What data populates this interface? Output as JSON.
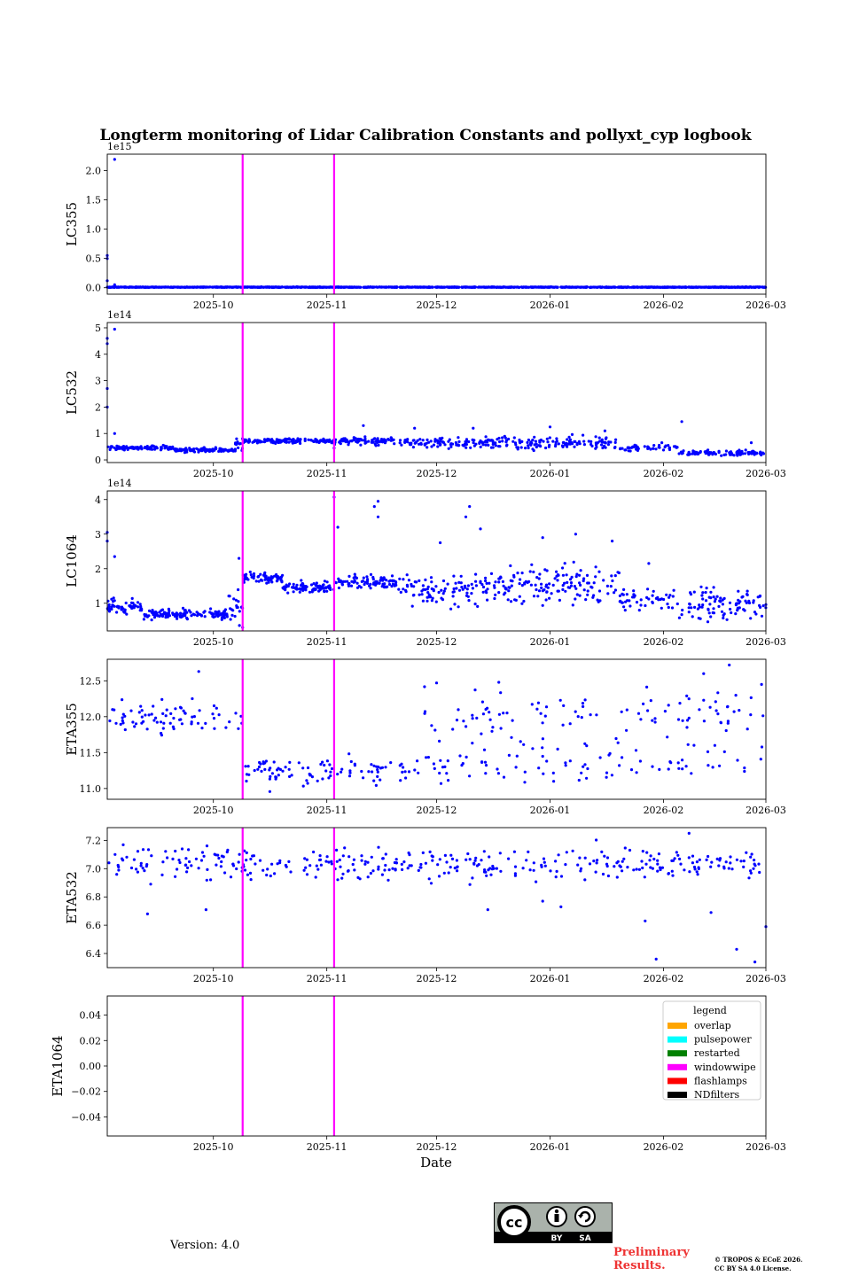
{
  "title": "Longterm monitoring of Lidar Calibration Constants and pollyxt_cyp logbook",
  "xlabel": "Date",
  "version_text": "Version: 4.0",
  "preliminary_line1": "Preliminary",
  "preliminary_line2": "Results.",
  "copyright_line1": "© TROPOS & ECoE 2026.",
  "copyright_line2": "CC BY SA 4.0 License.",
  "cc_badge": {
    "icon": "creative-commons-icon",
    "by_label": "BY",
    "sa_label": "SA"
  },
  "colors": {
    "data": "#0000ff",
    "windowwipe": "#ff00ff"
  },
  "chart_data": [
    {
      "type": "scatter",
      "ylabel": "LC355",
      "multiplier": "1e15",
      "x_range": [
        "2025-09-02",
        "2026-03-01"
      ],
      "x_ticks": [
        "2025-10",
        "2025-11",
        "2025-12",
        "2026-01",
        "2026-02",
        "2026-03"
      ],
      "ylim": [
        -0.11,
        2.28
      ],
      "y_ticks": [
        0.0,
        0.5,
        1.0,
        1.5,
        2.0
      ],
      "y_tick_labels": [
        "0.0",
        "0.5",
        "1.0",
        "1.5",
        "2.0"
      ],
      "segments": [
        {
          "start": "2025-09-02",
          "end": "2026-03-01",
          "mean": 0.01,
          "noise": 0.003,
          "density": 8
        }
      ],
      "outliers": [
        [
          "2025-09-02",
          0.5
        ],
        [
          "2025-09-02",
          0.55
        ],
        [
          "2025-09-02",
          0.12
        ],
        [
          "2025-09-04",
          2.19
        ],
        [
          "2025-09-04",
          0.05
        ]
      ],
      "windowwipe": [
        "2025-10-09",
        "2025-11-03"
      ]
    },
    {
      "type": "scatter",
      "ylabel": "LC532",
      "multiplier": "1e14",
      "x_range": [
        "2025-09-02",
        "2026-03-01"
      ],
      "x_ticks": [
        "2025-10",
        "2025-11",
        "2025-12",
        "2026-01",
        "2026-02",
        "2026-03"
      ],
      "ylim": [
        -0.1,
        5.2
      ],
      "y_ticks": [
        0,
        1,
        2,
        3,
        4,
        5
      ],
      "y_tick_labels": [
        "0",
        "1",
        "2",
        "3",
        "4",
        "5"
      ],
      "segments": [
        {
          "start": "2025-09-02",
          "end": "2025-09-20",
          "mean": 0.45,
          "noise": 0.06,
          "density": 6
        },
        {
          "start": "2025-09-20",
          "end": "2025-10-07",
          "mean": 0.37,
          "noise": 0.05,
          "density": 6
        },
        {
          "start": "2025-10-07",
          "end": "2025-10-09",
          "mean": 0.62,
          "noise": 0.15,
          "density": 6
        },
        {
          "start": "2025-10-09",
          "end": "2025-11-03",
          "mean": 0.72,
          "noise": 0.06,
          "density": 6
        },
        {
          "start": "2025-11-03",
          "end": "2025-11-20",
          "mean": 0.72,
          "noise": 0.1,
          "density": 5
        },
        {
          "start": "2025-11-20",
          "end": "2025-12-15",
          "mean": 0.65,
          "noise": 0.14,
          "density": 4
        },
        {
          "start": "2025-12-15",
          "end": "2026-01-20",
          "mean": 0.65,
          "noise": 0.16,
          "density": 4
        },
        {
          "start": "2026-01-20",
          "end": "2026-02-05",
          "mean": 0.45,
          "noise": 0.1,
          "density": 3
        },
        {
          "start": "2026-02-05",
          "end": "2026-03-01",
          "mean": 0.27,
          "noise": 0.07,
          "density": 4
        }
      ],
      "outliers": [
        [
          "2025-09-02",
          4.4
        ],
        [
          "2025-09-02",
          4.6
        ],
        [
          "2025-09-02",
          2.7
        ],
        [
          "2025-09-02",
          2.0
        ],
        [
          "2025-09-04",
          4.95
        ],
        [
          "2025-09-04",
          1.0
        ],
        [
          "2025-11-03",
          0.45
        ],
        [
          "2025-11-11",
          1.3
        ],
        [
          "2025-11-25",
          1.2
        ],
        [
          "2025-12-11",
          1.2
        ],
        [
          "2026-01-01",
          1.25
        ],
        [
          "2026-01-16",
          1.1
        ],
        [
          "2026-02-06",
          1.45
        ],
        [
          "2026-02-25",
          0.65
        ]
      ],
      "windowwipe": [
        "2025-10-09",
        "2025-11-03"
      ]
    },
    {
      "type": "scatter",
      "ylabel": "LC1064",
      "multiplier": "1e14",
      "x_range": [
        "2025-09-02",
        "2026-03-01"
      ],
      "x_ticks": [
        "2025-10",
        "2025-11",
        "2025-12",
        "2026-01",
        "2026-02",
        "2026-03"
      ],
      "ylim": [
        0.2,
        4.25
      ],
      "y_ticks": [
        1,
        2,
        3,
        4
      ],
      "y_tick_labels": [
        "1",
        "2",
        "3",
        "4"
      ],
      "segments": [
        {
          "start": "2025-09-02",
          "end": "2025-09-12",
          "mean": 0.9,
          "noise": 0.16,
          "density": 6
        },
        {
          "start": "2025-09-12",
          "end": "2025-10-05",
          "mean": 0.68,
          "noise": 0.1,
          "density": 6
        },
        {
          "start": "2025-10-05",
          "end": "2025-10-09",
          "mean": 0.9,
          "noise": 0.35,
          "density": 5
        },
        {
          "start": "2025-10-09",
          "end": "2025-10-20",
          "mean": 1.73,
          "noise": 0.1,
          "density": 6
        },
        {
          "start": "2025-10-20",
          "end": "2025-11-03",
          "mean": 1.45,
          "noise": 0.1,
          "density": 6
        },
        {
          "start": "2025-11-03",
          "end": "2025-11-20",
          "mean": 1.62,
          "noise": 0.14,
          "density": 5
        },
        {
          "start": "2025-11-20",
          "end": "2025-12-15",
          "mean": 1.4,
          "noise": 0.3,
          "density": 4
        },
        {
          "start": "2025-12-15",
          "end": "2026-01-20",
          "mean": 1.55,
          "noise": 0.4,
          "density": 4
        },
        {
          "start": "2026-01-20",
          "end": "2026-02-05",
          "mean": 1.1,
          "noise": 0.25,
          "density": 3
        },
        {
          "start": "2026-02-05",
          "end": "2026-03-01",
          "mean": 0.95,
          "noise": 0.3,
          "density": 4
        }
      ],
      "outliers": [
        [
          "2025-09-02",
          3.05
        ],
        [
          "2025-09-02",
          2.8
        ],
        [
          "2025-09-04",
          2.35
        ],
        [
          "2025-10-09",
          0.3
        ],
        [
          "2025-10-08",
          2.3
        ],
        [
          "2025-11-03",
          4.07
        ],
        [
          "2025-11-04",
          3.2
        ],
        [
          "2025-11-14",
          3.8
        ],
        [
          "2025-11-15",
          3.95
        ],
        [
          "2025-11-15",
          3.5
        ],
        [
          "2025-12-09",
          3.5
        ],
        [
          "2025-12-10",
          3.8
        ],
        [
          "2025-12-13",
          3.15
        ],
        [
          "2025-12-02",
          2.75
        ],
        [
          "2025-12-30",
          2.9
        ],
        [
          "2026-01-08",
          3.0
        ],
        [
          "2026-01-18",
          2.8
        ],
        [
          "2026-01-28",
          2.15
        ]
      ],
      "windowwipe": [
        "2025-10-09",
        "2025-11-03"
      ]
    },
    {
      "type": "scatter",
      "ylabel": "ETA355",
      "multiplier": "",
      "x_range": [
        "2025-09-02",
        "2026-03-01"
      ],
      "x_ticks": [
        "2025-10",
        "2025-11",
        "2025-12",
        "2026-01",
        "2026-02",
        "2026-03"
      ],
      "ylim": [
        10.85,
        12.8
      ],
      "y_ticks": [
        11.0,
        11.5,
        12.0,
        12.5
      ],
      "y_tick_labels": [
        "11.0",
        "11.5",
        "12.0",
        "12.5"
      ],
      "segments": [
        {
          "start": "2025-09-02",
          "end": "2025-10-09",
          "mean": 12.0,
          "noise": 0.17,
          "density": 2
        },
        {
          "start": "2025-10-09",
          "end": "2025-11-25",
          "mean": 11.25,
          "noise": 0.15,
          "density": 2
        },
        {
          "start": "2025-11-25",
          "end": "2026-03-01",
          "mean": 12.05,
          "noise": 0.25,
          "density": 1
        },
        {
          "start": "2025-11-25",
          "end": "2026-03-01",
          "mean": 11.4,
          "noise": 0.2,
          "density": 1
        }
      ],
      "outliers": [
        [
          "2025-09-27",
          12.63
        ],
        [
          "2026-02-19",
          12.72
        ],
        [
          "2026-02-12",
          12.6
        ],
        [
          "2025-12-01",
          12.47
        ],
        [
          "2026-01-02",
          11.1
        ]
      ],
      "windowwipe": [
        "2025-10-09",
        "2025-11-03"
      ]
    },
    {
      "type": "scatter",
      "ylabel": "ETA532",
      "multiplier": "",
      "x_range": [
        "2025-09-02",
        "2026-03-01"
      ],
      "x_ticks": [
        "2025-10",
        "2025-11",
        "2025-12",
        "2026-01",
        "2026-02",
        "2026-03"
      ],
      "ylim": [
        6.3,
        7.29
      ],
      "y_ticks": [
        6.4,
        6.6,
        6.8,
        7.0,
        7.2
      ],
      "y_tick_labels": [
        "6.4",
        "6.6",
        "6.8",
        "7.0",
        "7.2"
      ],
      "segments": [
        {
          "start": "2025-09-02",
          "end": "2026-03-01",
          "mean": 7.03,
          "noise": 0.08,
          "density": 2
        }
      ],
      "outliers": [
        [
          "2025-09-13",
          6.68
        ],
        [
          "2025-09-29",
          6.71
        ],
        [
          "2025-12-30",
          6.77
        ],
        [
          "2026-01-04",
          6.73
        ],
        [
          "2025-12-15",
          6.71
        ],
        [
          "2026-01-27",
          6.63
        ],
        [
          "2026-01-30",
          6.36
        ],
        [
          "2026-02-14",
          6.69
        ],
        [
          "2026-02-21",
          6.43
        ],
        [
          "2026-02-26",
          6.34
        ],
        [
          "2026-03-01",
          6.59
        ],
        [
          "2026-02-08",
          7.25
        ]
      ],
      "windowwipe": [
        "2025-10-09",
        "2025-11-03"
      ]
    },
    {
      "type": "scatter",
      "ylabel": "ETA1064",
      "multiplier": "",
      "x_range": [
        "2025-09-02",
        "2026-03-01"
      ],
      "x_ticks": [
        "2025-10",
        "2025-11",
        "2025-12",
        "2026-01",
        "2026-02",
        "2026-03"
      ],
      "ylim": [
        -0.055,
        0.055
      ],
      "y_ticks": [
        -0.04,
        -0.02,
        0.0,
        0.02,
        0.04
      ],
      "y_tick_labels": [
        "−0.04",
        "−0.02",
        "0.00",
        "0.02",
        "0.04"
      ],
      "segments": [],
      "outliers": [],
      "windowwipe": [
        "2025-10-09",
        "2025-11-03"
      ],
      "legend": {
        "title": "legend",
        "position": "upper-right",
        "entries": [
          {
            "label": "overlap",
            "color": "#ffa500"
          },
          {
            "label": "pulsepower",
            "color": "#00ffff"
          },
          {
            "label": "restarted",
            "color": "#008000"
          },
          {
            "label": "windowwipe",
            "color": "#ff00ff"
          },
          {
            "label": "flashlamps",
            "color": "#ff0000"
          },
          {
            "label": "NDfilters",
            "color": "#000000"
          }
        ]
      }
    }
  ]
}
